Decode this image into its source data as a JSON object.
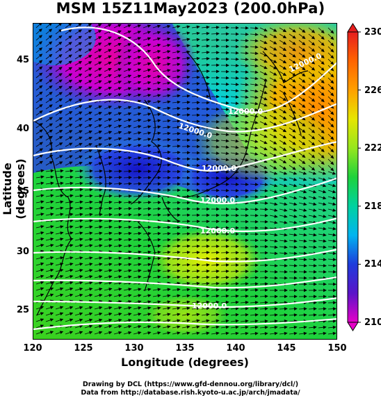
{
  "title": "MSM 15Z11May2023 (200.0hPa)",
  "xlabel": "Longitude (degrees)",
  "ylabel": "Latitude  (degrees)",
  "x_ticks": [
    "120",
    "125",
    "130",
    "135",
    "140",
    "145",
    "150"
  ],
  "y_ticks": [
    "45",
    "40",
    "35",
    "30",
    "25"
  ],
  "colorbar_ticks": [
    "230",
    "226",
    "222",
    "218",
    "214",
    "210"
  ],
  "contour_labels": [
    "12000.0",
    "12000.0",
    "12000.0",
    "12000.0",
    "12000.0",
    "12000.0",
    "12000.0"
  ],
  "credits": {
    "line1": "Drawing by DCL (https://www.gfd-dennou.org/library/dcl/)",
    "line2": "Data from http://database.rish.kyoto-u.ac.jp/arch/jmadata/"
  },
  "chart_data": {
    "type": "heatmap",
    "x_range": [
      120,
      150
    ],
    "y_range": [
      22.5,
      48
    ],
    "variable_range": [
      210,
      230
    ],
    "colorbar_ticks": [
      210,
      214,
      218,
      222,
      226,
      230
    ],
    "colors": {
      "min": "#e600c8",
      "low": "#1e28d2",
      "mid_low": "#00c8e6",
      "mid": "#1ed21e",
      "mid_high": "#dcf000",
      "high": "#ff8c00",
      "max": "#e61e1e"
    }
  }
}
